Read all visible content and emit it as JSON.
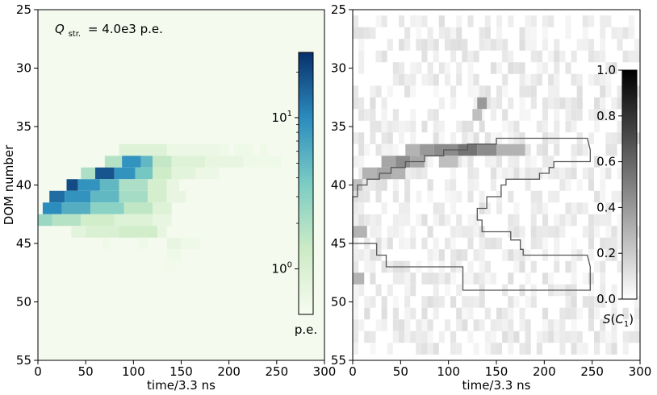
{
  "chart_data": [
    {
      "type": "heatmap",
      "panel": "left",
      "annotation_prefix": "Q",
      "annotation_subscript": "str.",
      "annotation_value": "= 4.0e3 p.e.",
      "xlabel": "time/3.3 ns",
      "ylabel": "DOM number",
      "xlim": [
        0,
        300
      ],
      "ylim": [
        55,
        25
      ],
      "x_ticks": [
        "0",
        "50",
        "100",
        "150",
        "200",
        "250",
        "300"
      ],
      "y_ticks": [
        "25",
        "30",
        "35",
        "40",
        "45",
        "50",
        "55"
      ],
      "colorbar": {
        "label": "p.e.",
        "scale": "log",
        "ticks": [
          "10",
          "10"
        ],
        "tick_exponents": [
          "1",
          "0"
        ],
        "tick_values": [
          10,
          1
        ],
        "range": [
          0.5,
          27
        ],
        "colormap": [
          "#f7fcf0",
          "#ccebc5",
          "#7bccc4",
          "#2b8cbe",
          "#08306b"
        ]
      },
      "cells": [
        {
          "dom": 37,
          "segments": [
            [
              85,
              135,
              0.9
            ],
            [
              135,
              190,
              0.65
            ],
            [
              190,
              200,
              0.6
            ],
            [
              205,
              225,
              0.6
            ],
            [
              232,
              240,
              0.6
            ]
          ]
        },
        {
          "dom": 38,
          "segments": [
            [
              70,
              88,
              1.8
            ],
            [
              88,
              108,
              9
            ],
            [
              108,
              120,
              5
            ],
            [
              120,
              140,
              1.5
            ],
            [
              140,
              175,
              0.9
            ],
            [
              175,
              215,
              0.7
            ],
            [
              215,
              255,
              0.6
            ]
          ]
        },
        {
          "dom": 39,
          "segments": [
            [
              45,
              60,
              2
            ],
            [
              60,
              80,
              18
            ],
            [
              80,
              102,
              9
            ],
            [
              102,
              120,
              4
            ],
            [
              120,
              140,
              1.3
            ],
            [
              140,
              165,
              0.8
            ],
            [
              165,
              190,
              0.65
            ]
          ]
        },
        {
          "dom": 40,
          "segments": [
            [
              30,
              42,
              20
            ],
            [
              42,
              65,
              9
            ],
            [
              65,
              85,
              5
            ],
            [
              85,
              115,
              2
            ],
            [
              115,
              135,
              1.1
            ],
            [
              135,
              148,
              0.7
            ]
          ]
        },
        {
          "dom": 41,
          "segments": [
            [
              12,
              28,
              14
            ],
            [
              28,
              55,
              9
            ],
            [
              55,
              85,
              5
            ],
            [
              85,
              115,
              2.2
            ],
            [
              115,
              135,
              1.1
            ],
            [
              135,
              155,
              0.7
            ]
          ]
        },
        {
          "dom": 42,
          "segments": [
            [
              5,
              25,
              10
            ],
            [
              25,
              55,
              6
            ],
            [
              55,
              90,
              3
            ],
            [
              90,
              120,
              1.6
            ],
            [
              120,
              140,
              0.9
            ]
          ]
        },
        {
          "dom": 43,
          "segments": [
            [
              0,
              15,
              2.5
            ],
            [
              15,
              45,
              1.8
            ],
            [
              45,
              80,
              1.2
            ],
            [
              80,
              120,
              0.9
            ],
            [
              120,
              140,
              0.7
            ]
          ]
        },
        {
          "dom": 44,
          "segments": [
            [
              35,
              50,
              0.8
            ],
            [
              50,
              85,
              1.0
            ],
            [
              85,
              125,
              1.2
            ],
            [
              125,
              135,
              0.7
            ]
          ]
        },
        {
          "dom": 45,
          "segments": [
            [
              68,
              75,
              0.6
            ],
            [
              105,
              115,
              0.6
            ],
            [
              135,
              150,
              0.7
            ],
            [
              150,
              170,
              0.6
            ]
          ]
        },
        {
          "dom": 46,
          "segments": [
            [
              135,
              150,
              0.6
            ]
          ]
        },
        {
          "dom": 47,
          "segments": [
            [
              130,
              145,
              0.55
            ]
          ]
        }
      ]
    },
    {
      "type": "heatmap",
      "panel": "right",
      "xlabel": "time/3.3 ns",
      "xlim": [
        0,
        300
      ],
      "ylim": [
        55,
        25
      ],
      "x_ticks": [
        "0",
        "50",
        "100",
        "150",
        "200",
        "250",
        "300"
      ],
      "y_ticks": [
        "25",
        "30",
        "35",
        "40",
        "45",
        "50",
        "55"
      ],
      "colorbar": {
        "label_prefix": "S",
        "label_var": "C",
        "label_sub": "1",
        "range": [
          0,
          1
        ],
        "ticks": [
          "0.0",
          "0.2",
          "0.4",
          "0.6",
          "0.8",
          "1.0"
        ],
        "tick_values": [
          0,
          0.2,
          0.4,
          0.6,
          0.8,
          1.0
        ],
        "colormap": [
          "#ffffff",
          "#000000"
        ]
      },
      "highlights": [
        {
          "dom": 37,
          "segments": [
            [
              55,
              70,
              0.3
            ],
            [
              70,
              85,
              0.4
            ],
            [
              85,
              110,
              0.45
            ],
            [
              110,
              130,
              0.55
            ],
            [
              130,
              150,
              0.45
            ],
            [
              150,
              180,
              0.3
            ]
          ]
        },
        {
          "dom": 38,
          "segments": [
            [
              30,
              45,
              0.35
            ],
            [
              45,
              60,
              0.45
            ],
            [
              60,
              75,
              0.35
            ],
            [
              90,
              110,
              0.25
            ]
          ]
        },
        {
          "dom": 39,
          "segments": [
            [
              10,
              25,
              0.3
            ],
            [
              25,
              40,
              0.35
            ],
            [
              40,
              55,
              0.3
            ]
          ]
        },
        {
          "dom": 40,
          "segments": [
            [
              0,
              10,
              0.25
            ]
          ]
        },
        {
          "dom": 33,
          "segments": [
            [
              130,
              140,
              0.4
            ]
          ]
        },
        {
          "dom": 34,
          "segments": [
            [
              125,
              135,
              0.25
            ]
          ]
        },
        {
          "dom": 44,
          "segments": [
            [
              0,
              15,
              0.3
            ]
          ]
        },
        {
          "dom": 48,
          "segments": [
            [
              0,
              12,
              0.3
            ]
          ]
        }
      ],
      "contours": [
        {
          "points": [
            [
              0,
              41
            ],
            [
              5,
              41
            ],
            [
              5,
              40
            ],
            [
              15,
              40
            ],
            [
              15,
              39.5
            ],
            [
              28,
              39.5
            ],
            [
              28,
              39
            ],
            [
              40,
              39
            ],
            [
              40,
              38.5
            ],
            [
              55,
              38.5
            ],
            [
              55,
              38
            ],
            [
              75,
              38
            ],
            [
              75,
              37.5
            ],
            [
              95,
              37.5
            ],
            [
              95,
              37
            ],
            [
              120,
              37
            ],
            [
              120,
              36.5
            ],
            [
              150,
              36.5
            ],
            [
              150,
              36
            ],
            [
              245,
              36
            ],
            [
              248,
              37
            ],
            [
              248,
              38
            ],
            [
              210,
              38
            ],
            [
              210,
              38.5
            ],
            [
              205,
              38.5
            ],
            [
              205,
              39
            ],
            [
              195,
              39
            ],
            [
              195,
              39.5
            ],
            [
              160,
              39.5
            ],
            [
              160,
              40
            ],
            [
              155,
              40
            ],
            [
              155,
              41
            ],
            [
              140,
              41
            ],
            [
              140,
              42
            ],
            [
              130,
              42
            ],
            [
              130,
              43
            ],
            [
              135,
              43
            ],
            [
              135,
              44
            ],
            [
              165,
              44
            ],
            [
              165,
              44.7
            ],
            [
              175,
              44.7
            ],
            [
              175,
              45.5
            ],
            [
              178,
              45.5
            ],
            [
              178,
              46
            ],
            [
              245,
              46
            ],
            [
              248,
              47
            ],
            [
              248,
              49
            ],
            [
              115,
              49
            ],
            [
              115,
              47
            ],
            [
              35,
              47
            ],
            [
              35,
              46
            ],
            [
              25,
              46
            ],
            [
              25,
              45
            ],
            [
              0,
              45
            ]
          ]
        }
      ]
    }
  ]
}
